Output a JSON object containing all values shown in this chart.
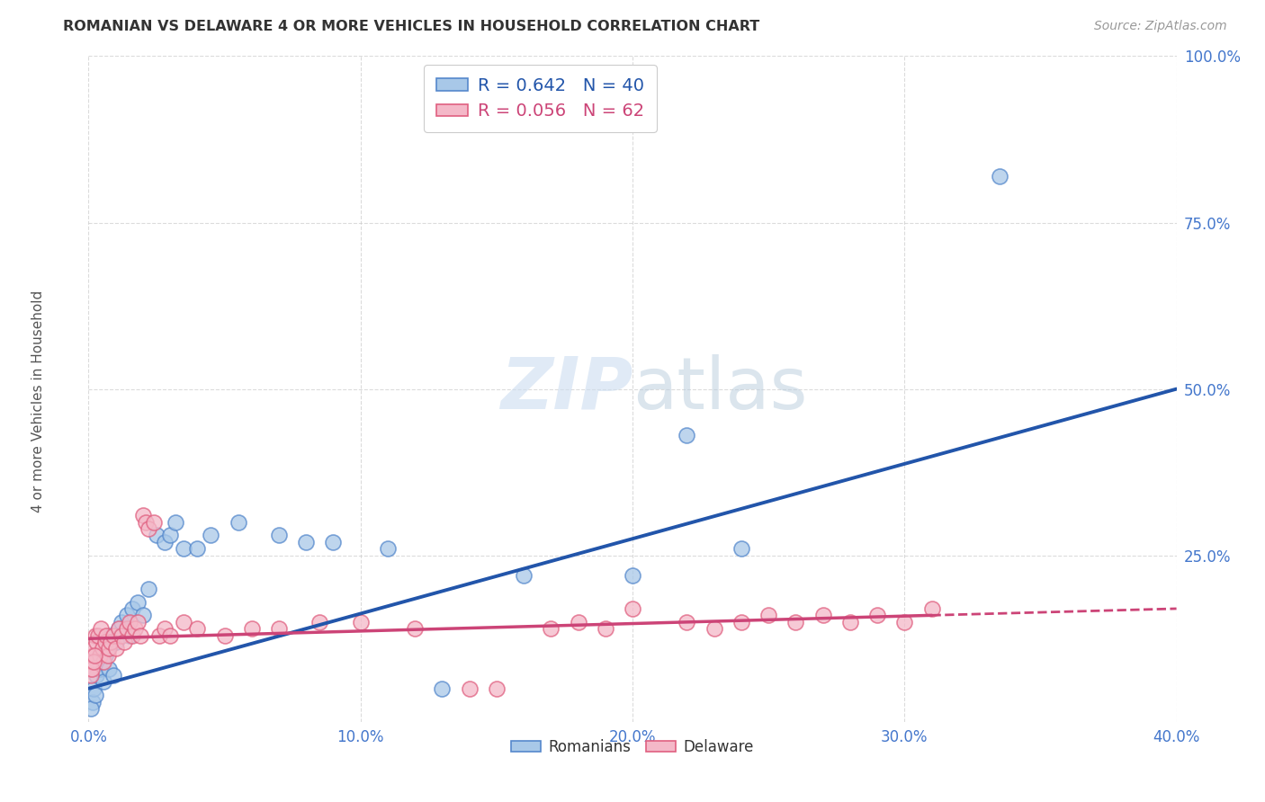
{
  "title": "ROMANIAN VS DELAWARE 4 OR MORE VEHICLES IN HOUSEHOLD CORRELATION CHART",
  "source": "Source: ZipAtlas.com",
  "ylabel": "4 or more Vehicles in Household",
  "blue_color": "#a8c8e8",
  "pink_color": "#f4b8c8",
  "blue_edge_color": "#5588cc",
  "pink_edge_color": "#e06080",
  "blue_line_color": "#2255aa",
  "pink_line_color": "#cc4477",
  "tick_color": "#4477cc",
  "watermark_color": "#ddeeff",
  "background_color": "#ffffff",
  "grid_color": "#cccccc",
  "title_color": "#333333",
  "source_color": "#999999",
  "ylabel_color": "#555555",
  "blue_r": "0.642",
  "blue_n": "40",
  "pink_r": "0.056",
  "pink_n": "62",
  "blue_scatter_x": [
    0.15,
    0.2,
    0.3,
    0.4,
    0.5,
    0.55,
    0.6,
    0.7,
    0.75,
    0.8,
    0.9,
    1.0,
    1.1,
    1.2,
    1.4,
    1.5,
    1.6,
    1.8,
    2.0,
    2.2,
    2.5,
    2.8,
    3.0,
    3.2,
    3.5,
    4.0,
    4.5,
    5.5,
    7.0,
    8.0,
    9.0,
    11.0,
    13.0,
    16.0,
    20.0,
    22.0,
    24.0,
    33.5,
    0.1,
    0.25
  ],
  "blue_scatter_y": [
    3.0,
    5.0,
    7.0,
    8.0,
    9.0,
    6.0,
    10.0,
    11.0,
    8.0,
    13.0,
    7.0,
    12.0,
    14.0,
    15.0,
    16.0,
    13.0,
    17.0,
    18.0,
    16.0,
    20.0,
    28.0,
    27.0,
    28.0,
    30.0,
    26.0,
    26.0,
    28.0,
    30.0,
    28.0,
    27.0,
    27.0,
    26.0,
    5.0,
    22.0,
    22.0,
    43.0,
    26.0,
    82.0,
    2.0,
    4.0
  ],
  "pink_scatter_x": [
    0.05,
    0.1,
    0.15,
    0.2,
    0.25,
    0.3,
    0.35,
    0.4,
    0.45,
    0.5,
    0.55,
    0.6,
    0.65,
    0.7,
    0.75,
    0.8,
    0.9,
    1.0,
    1.1,
    1.2,
    1.3,
    1.4,
    1.5,
    1.6,
    1.7,
    1.8,
    1.9,
    2.0,
    2.1,
    2.2,
    2.4,
    2.6,
    2.8,
    3.0,
    3.5,
    4.0,
    5.0,
    6.0,
    7.0,
    8.5,
    10.0,
    12.0,
    14.0,
    15.0,
    17.0,
    18.0,
    19.0,
    20.0,
    22.0,
    23.0,
    24.0,
    25.0,
    26.0,
    27.0,
    28.0,
    29.0,
    30.0,
    31.0,
    0.08,
    0.12,
    0.18,
    0.22
  ],
  "pink_scatter_y": [
    8.0,
    9.0,
    10.0,
    11.0,
    13.0,
    12.0,
    13.0,
    10.0,
    14.0,
    11.0,
    9.0,
    12.0,
    13.0,
    10.0,
    11.0,
    12.0,
    13.0,
    11.0,
    14.0,
    13.0,
    12.0,
    14.0,
    15.0,
    13.0,
    14.0,
    15.0,
    13.0,
    31.0,
    30.0,
    29.0,
    30.0,
    13.0,
    14.0,
    13.0,
    15.0,
    14.0,
    13.0,
    14.0,
    14.0,
    15.0,
    15.0,
    14.0,
    5.0,
    5.0,
    14.0,
    15.0,
    14.0,
    17.0,
    15.0,
    14.0,
    15.0,
    16.0,
    15.0,
    16.0,
    15.0,
    16.0,
    15.0,
    17.0,
    7.0,
    8.0,
    9.0,
    10.0
  ],
  "xlim": [
    0,
    40
  ],
  "ylim": [
    0,
    100
  ],
  "xticks": [
    0,
    10,
    20,
    30,
    40
  ],
  "yticks": [
    25,
    50,
    75,
    100
  ],
  "blue_line_x0": 0.0,
  "blue_line_y0": 5.0,
  "blue_line_x1": 40.0,
  "blue_line_y1": 50.0,
  "pink_line_x0": 0.0,
  "pink_line_y0": 12.5,
  "pink_line_x1": 31.0,
  "pink_line_y1": 16.0,
  "pink_dash_x0": 31.0,
  "pink_dash_y0": 16.0,
  "pink_dash_x1": 40.0,
  "pink_dash_y1": 17.0
}
